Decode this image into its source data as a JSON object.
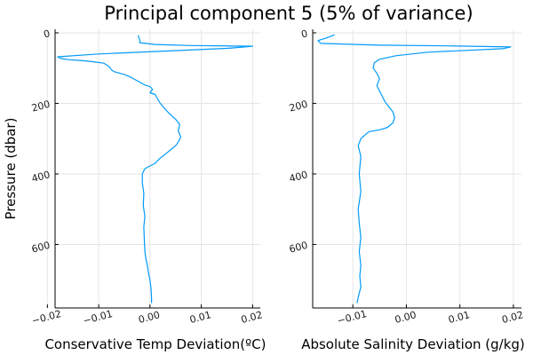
{
  "figure": {
    "title": "Principal component 5 (5% of variance)"
  },
  "chart_data": [
    {
      "type": "line",
      "title": "",
      "xlabel": "Conservative Temp Deviation(ºC)",
      "ylabel": "Pressure (dbar)",
      "xlim": [
        -0.0185,
        0.0215
      ],
      "ylim": [
        780,
        -10
      ],
      "y_inverted": true,
      "grid": true,
      "legend": "none",
      "x_ticks": [
        -0.02,
        -0.01,
        0.0,
        0.01,
        0.02
      ],
      "x_tick_labels": [
        "−0.02",
        "−0.01",
        "0.00",
        "0.01",
        "0.02"
      ],
      "y_ticks": [
        0,
        200,
        400,
        600
      ],
      "y_tick_labels": [
        "0",
        "200",
        "400",
        "600"
      ],
      "color": "#009AFA",
      "series": [
        {
          "x": [
            -0.0023,
            -0.002,
            -0.002,
            0.001,
            0.008,
            0.02,
            0.015,
            -0.01,
            -0.018,
            -0.0175,
            -0.016,
            -0.013,
            -0.011,
            -0.009,
            -0.008,
            -0.0075,
            -0.007,
            -0.005,
            -0.004,
            -0.003,
            -0.002,
            -0.001,
            0.0,
            0.0005,
            0.0,
            0.001,
            0.002,
            0.0035,
            0.005,
            0.0058,
            0.0055,
            0.006,
            0.0055,
            0.005,
            0.004,
            0.003,
            0.002,
            0.001,
            -0.001,
            -0.0015,
            -0.0015,
            -0.0012,
            -0.0013,
            -0.001,
            -0.0012,
            -0.0011,
            -0.001,
            -0.0008,
            -0.0005,
            -0.0003,
            0.0,
            0.0002,
            0.0003,
            0.0003
          ],
          "y": [
            8,
            20,
            28,
            33,
            36,
            38,
            44,
            60,
            68,
            72,
            76,
            79,
            82,
            86,
            95,
            105,
            110,
            118,
            124,
            132,
            140,
            148,
            152,
            160,
            170,
            175,
            200,
            225,
            245,
            260,
            278,
            295,
            310,
            320,
            332,
            344,
            355,
            370,
            385,
            400,
            425,
            455,
            490,
            520,
            550,
            590,
            620,
            640,
            660,
            680,
            700,
            725,
            750,
            765
          ]
        }
      ]
    },
    {
      "type": "line",
      "title": "",
      "xlabel": "Absolute Salinity Deviation (g/kg)",
      "ylabel": "",
      "xlim": [
        -0.0175,
        0.0215
      ],
      "ylim": [
        780,
        -10
      ],
      "y_inverted": true,
      "grid": true,
      "legend": "none",
      "x_ticks": [
        -0.01,
        0.0,
        0.01,
        0.02
      ],
      "x_tick_labels": [
        "−0.01",
        "0.00",
        "0.01",
        "0.02"
      ],
      "y_ticks": [
        0,
        200,
        400,
        600
      ],
      "y_tick_labels": [
        "0",
        "200",
        "400",
        "600"
      ],
      "color": "#009AFA",
      "series": [
        {
          "x": [
            -0.0135,
            -0.015,
            -0.0165,
            -0.016,
            -0.005,
            0.008,
            0.0195,
            0.018,
            0.004,
            -0.002,
            -0.005,
            -0.006,
            -0.0062,
            -0.0055,
            -0.005,
            -0.0055,
            -0.005,
            -0.0045,
            -0.004,
            -0.0035,
            -0.003,
            -0.0025,
            -0.0022,
            -0.0025,
            -0.0035,
            -0.005,
            -0.007,
            -0.0085,
            -0.009,
            -0.0085,
            -0.0088,
            -0.0085,
            -0.009,
            -0.0088,
            -0.0085,
            -0.0088,
            -0.0085,
            -0.0087,
            -0.0085,
            -0.009,
            -0.0092
          ],
          "y": [
            6,
            15,
            22,
            30,
            35,
            37,
            40,
            45,
            55,
            65,
            75,
            85,
            100,
            115,
            130,
            150,
            165,
            180,
            195,
            205,
            215,
            225,
            240,
            255,
            268,
            275,
            280,
            300,
            320,
            350,
            400,
            450,
            500,
            540,
            580,
            620,
            660,
            690,
            720,
            750,
            765
          ]
        }
      ]
    }
  ]
}
